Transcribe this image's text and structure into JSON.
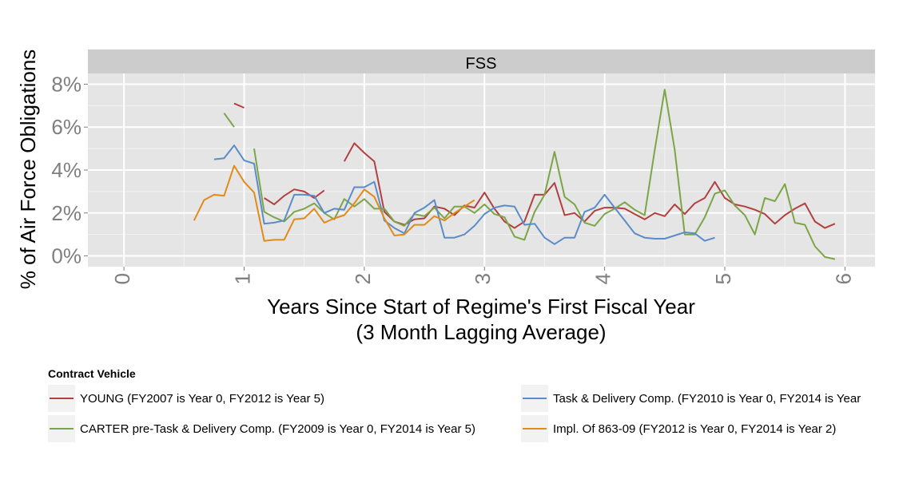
{
  "chart_data": {
    "type": "line",
    "title": "",
    "facet_label": "FSS",
    "xlabel": "Years Since Start of Regime's First Fiscal Year",
    "xlabel_sub": "(3 Month Lagging Average)",
    "ylabel": "% of Air Force Obligations",
    "xlim": [
      -0.3,
      6.25
    ],
    "ylim": [
      -0.5,
      8.5
    ],
    "x_ticks": [
      0,
      1,
      2,
      3,
      4,
      5,
      6
    ],
    "x_tick_labels": [
      "0",
      "1",
      "2",
      "3",
      "4",
      "5",
      "6"
    ],
    "y_ticks": [
      0,
      2,
      4,
      6,
      8
    ],
    "y_tick_labels": [
      "0%",
      "2%",
      "4%",
      "6%",
      "8%"
    ],
    "grid": true,
    "legend": {
      "title": "Contract Vehicle",
      "position": "bottom"
    },
    "series": [
      {
        "name": "YOUNG (FY2007 is Year 0, FY2012 is Year 5)",
        "color": "#b2403f",
        "segments": [
          [
            [
              0.917,
              7.1
            ],
            [
              1.0,
              6.9
            ]
          ],
          [
            [
              1.167,
              2.7
            ],
            [
              1.25,
              2.4
            ],
            [
              1.333,
              2.8
            ],
            [
              1.417,
              3.1
            ],
            [
              1.5,
              3.0
            ],
            [
              1.583,
              2.7
            ],
            [
              1.667,
              3.05
            ]
          ],
          [
            [
              1.833,
              4.4
            ],
            [
              1.917,
              5.25
            ],
            [
              2.0,
              4.8
            ],
            [
              2.083,
              4.4
            ],
            [
              2.167,
              2.05
            ],
            [
              2.25,
              1.6
            ],
            [
              2.333,
              1.45
            ],
            [
              2.417,
              1.7
            ],
            [
              2.5,
              1.75
            ],
            [
              2.583,
              2.3
            ],
            [
              2.667,
              2.2
            ],
            [
              2.75,
              1.9
            ],
            [
              2.833,
              2.35
            ],
            [
              2.917,
              2.25
            ],
            [
              3.0,
              2.95
            ],
            [
              3.083,
              2.2
            ],
            [
              3.167,
              1.6
            ],
            [
              3.25,
              1.3
            ],
            [
              3.333,
              1.6
            ],
            [
              3.417,
              2.85
            ],
            [
              3.5,
              2.85
            ],
            [
              3.583,
              3.4
            ],
            [
              3.667,
              1.9
            ],
            [
              3.75,
              2.0
            ],
            [
              3.833,
              1.6
            ],
            [
              3.917,
              2.1
            ],
            [
              4.0,
              2.25
            ],
            [
              4.083,
              2.25
            ],
            [
              4.167,
              2.2
            ],
            [
              4.25,
              1.95
            ],
            [
              4.333,
              1.7
            ],
            [
              4.417,
              2.0
            ],
            [
              4.5,
              1.85
            ],
            [
              4.583,
              2.4
            ],
            [
              4.667,
              1.95
            ],
            [
              4.75,
              2.45
            ],
            [
              4.833,
              2.7
            ],
            [
              4.917,
              3.45
            ],
            [
              5.0,
              2.7
            ],
            [
              5.083,
              2.4
            ],
            [
              5.167,
              2.3
            ],
            [
              5.25,
              2.15
            ],
            [
              5.333,
              1.95
            ],
            [
              5.417,
              1.5
            ],
            [
              5.5,
              1.9
            ],
            [
              5.583,
              2.2
            ],
            [
              5.667,
              2.45
            ],
            [
              5.75,
              1.6
            ],
            [
              5.833,
              1.3
            ],
            [
              5.917,
              1.5
            ]
          ]
        ]
      },
      {
        "name": "CARTER pre-Task & Delivery Comp. (FY2009 is Year 0, FY2014 is Year 5)",
        "color": "#7ca548",
        "segments": [
          [
            [
              0.833,
              6.65
            ],
            [
              0.917,
              6.0
            ]
          ],
          [
            [
              1.083,
              5.0
            ],
            [
              1.167,
              2.05
            ],
            [
              1.25,
              1.8
            ],
            [
              1.333,
              1.6
            ],
            [
              1.417,
              2.05
            ],
            [
              1.5,
              2.2
            ],
            [
              1.583,
              2.45
            ],
            [
              1.667,
              2.0
            ],
            [
              1.75,
              1.7
            ],
            [
              1.833,
              2.65
            ],
            [
              1.917,
              2.3
            ],
            [
              2.0,
              2.65
            ],
            [
              2.083,
              2.2
            ],
            [
              2.167,
              2.2
            ],
            [
              2.25,
              1.6
            ],
            [
              2.333,
              1.4
            ],
            [
              2.417,
              1.95
            ],
            [
              2.5,
              1.85
            ],
            [
              2.583,
              2.25
            ],
            [
              2.667,
              1.75
            ],
            [
              2.75,
              2.3
            ],
            [
              2.833,
              2.3
            ],
            [
              2.917,
              2.0
            ],
            [
              3.0,
              2.4
            ],
            [
              3.083,
              1.95
            ],
            [
              3.167,
              1.8
            ],
            [
              3.25,
              0.9
            ],
            [
              3.333,
              0.75
            ],
            [
              3.417,
              2.05
            ],
            [
              3.5,
              2.85
            ],
            [
              3.583,
              4.85
            ],
            [
              3.667,
              2.75
            ],
            [
              3.75,
              2.4
            ],
            [
              3.833,
              1.55
            ],
            [
              3.917,
              1.4
            ],
            [
              4.0,
              1.95
            ],
            [
              4.083,
              2.2
            ],
            [
              4.167,
              2.5
            ],
            [
              4.25,
              2.15
            ],
            [
              4.333,
              1.9
            ],
            [
              4.417,
              4.95
            ],
            [
              4.5,
              7.75
            ],
            [
              4.583,
              4.95
            ],
            [
              4.667,
              1.0
            ],
            [
              4.75,
              1.0
            ],
            [
              4.833,
              1.8
            ],
            [
              4.917,
              2.9
            ],
            [
              5.0,
              3.05
            ],
            [
              5.083,
              2.35
            ],
            [
              5.167,
              1.9
            ],
            [
              5.25,
              1.0
            ],
            [
              5.333,
              2.7
            ],
            [
              5.417,
              2.55
            ],
            [
              5.5,
              3.35
            ],
            [
              5.583,
              1.55
            ],
            [
              5.667,
              1.45
            ],
            [
              5.75,
              0.45
            ],
            [
              5.833,
              -0.05
            ],
            [
              5.917,
              -0.15
            ]
          ]
        ]
      },
      {
        "name": "Task & Delivery Comp. (FY2010 is Year 0, FY2014 is Year",
        "color": "#5b8cc9",
        "segments": [
          [
            [
              0.75,
              4.5
            ],
            [
              0.833,
              4.55
            ],
            [
              0.917,
              5.15
            ],
            [
              1.0,
              4.45
            ],
            [
              1.083,
              4.3
            ],
            [
              1.167,
              1.5
            ],
            [
              1.25,
              1.55
            ],
            [
              1.333,
              1.65
            ],
            [
              1.417,
              2.85
            ],
            [
              1.5,
              2.85
            ],
            [
              1.583,
              2.8
            ],
            [
              1.667,
              2.0
            ],
            [
              1.75,
              2.2
            ],
            [
              1.833,
              2.15
            ],
            [
              1.917,
              3.2
            ],
            [
              2.0,
              3.2
            ],
            [
              2.083,
              3.45
            ],
            [
              2.167,
              1.65
            ],
            [
              2.25,
              1.3
            ],
            [
              2.333,
              1.05
            ],
            [
              2.417,
              2.0
            ],
            [
              2.5,
              2.25
            ],
            [
              2.583,
              2.6
            ],
            [
              2.667,
              0.85
            ],
            [
              2.75,
              0.85
            ],
            [
              2.833,
              1.0
            ],
            [
              2.917,
              1.4
            ],
            [
              3.0,
              1.95
            ],
            [
              3.083,
              2.25
            ],
            [
              3.167,
              2.35
            ],
            [
              3.25,
              2.3
            ],
            [
              3.333,
              1.45
            ],
            [
              3.417,
              1.5
            ],
            [
              3.5,
              0.85
            ],
            [
              3.583,
              0.55
            ],
            [
              3.667,
              0.85
            ],
            [
              3.75,
              0.85
            ],
            [
              3.833,
              2.05
            ],
            [
              3.917,
              2.25
            ],
            [
              4.0,
              2.85
            ],
            [
              4.083,
              2.25
            ],
            [
              4.167,
              1.65
            ],
            [
              4.25,
              1.05
            ],
            [
              4.333,
              0.85
            ],
            [
              4.417,
              0.8
            ],
            [
              4.5,
              0.8
            ],
            [
              4.583,
              0.95
            ],
            [
              4.667,
              1.1
            ],
            [
              4.75,
              1.05
            ],
            [
              4.833,
              0.7
            ],
            [
              4.917,
              0.85
            ]
          ]
        ]
      },
      {
        "name": "Impl. Of 863-09 (FY2012 is Year 0, FY2014 is Year 2)",
        "color": "#e08b1a",
        "segments": [
          [
            [
              0.583,
              1.65
            ],
            [
              0.667,
              2.6
            ],
            [
              0.75,
              2.85
            ],
            [
              0.833,
              2.8
            ],
            [
              0.917,
              4.2
            ],
            [
              1.0,
              3.45
            ],
            [
              1.083,
              2.95
            ],
            [
              1.167,
              0.7
            ],
            [
              1.25,
              0.75
            ],
            [
              1.333,
              0.75
            ],
            [
              1.417,
              1.7
            ],
            [
              1.5,
              1.75
            ],
            [
              1.583,
              2.2
            ],
            [
              1.667,
              1.55
            ],
            [
              1.75,
              1.75
            ],
            [
              1.833,
              1.9
            ],
            [
              1.917,
              2.45
            ],
            [
              2.0,
              3.1
            ],
            [
              2.083,
              2.75
            ],
            [
              2.167,
              1.75
            ],
            [
              2.25,
              0.95
            ],
            [
              2.333,
              1.0
            ],
            [
              2.417,
              1.45
            ],
            [
              2.5,
              1.45
            ],
            [
              2.583,
              1.85
            ],
            [
              2.667,
              1.65
            ],
            [
              2.75,
              2.0
            ],
            [
              2.833,
              2.3
            ],
            [
              2.917,
              2.6
            ]
          ]
        ]
      }
    ]
  }
}
